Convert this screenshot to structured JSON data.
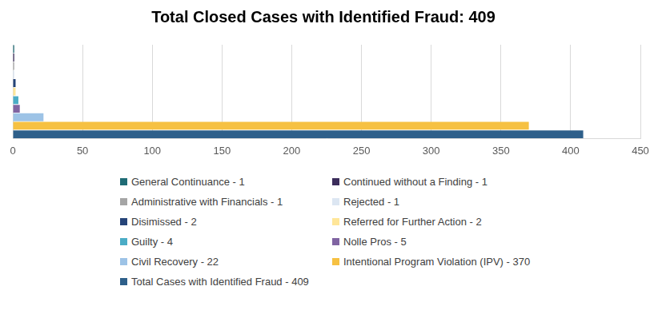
{
  "chart_data": {
    "type": "bar",
    "title": "Total Closed Cases with Identified Fraud: 409",
    "orientation": "horizontal",
    "categories": [
      null
    ],
    "series": [
      {
        "name": "General Continuance - 1",
        "color": "#1f6b75",
        "values": [
          1
        ]
      },
      {
        "name": "Continued without a Finding - 1",
        "color": "#3b2d5b",
        "values": [
          1
        ]
      },
      {
        "name": "Administrative with Financials - 1",
        "color": "#a5a5a5",
        "values": [
          1
        ]
      },
      {
        "name": "Rejected - 1",
        "color": "#dce6f2",
        "values": [
          1
        ]
      },
      {
        "name": "Disimissed - 2",
        "color": "#264478",
        "values": [
          2
        ]
      },
      {
        "name": "Referred for Further Action - 2",
        "color": "#ffe699",
        "values": [
          2
        ]
      },
      {
        "name": "Guilty - 4",
        "color": "#4bacc6",
        "values": [
          4
        ]
      },
      {
        "name": "Nolle Pros - 5",
        "color": "#8064a2",
        "values": [
          5
        ]
      },
      {
        "name": "Civil Recovery - 22",
        "color": "#9dc3e6",
        "values": [
          22
        ]
      },
      {
        "name": "Intentional Program Violation (IPV) - 370",
        "color": "#f6c142",
        "values": [
          370
        ]
      },
      {
        "name": "Total Cases with Identified Fraud - 409",
        "color": "#2e5f8a",
        "values": [
          409
        ]
      }
    ],
    "xlim": [
      0,
      450
    ],
    "xticks": [
      0,
      50,
      100,
      150,
      200,
      250,
      300,
      350,
      400,
      450
    ],
    "grid": true,
    "legend": "bottom",
    "tick_labels": "x"
  }
}
